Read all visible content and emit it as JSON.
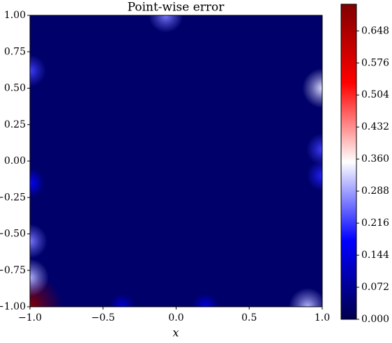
{
  "chart_data": {
    "type": "heatmap",
    "title": "Point-wise error",
    "x_label": "x",
    "xlim": [
      -1,
      1
    ],
    "ylim": [
      -1,
      1
    ],
    "xticks": [
      {
        "value": -1,
        "label": "−1.0"
      },
      {
        "value": -0.5,
        "label": "−0.5"
      },
      {
        "value": 0,
        "label": "0.0"
      },
      {
        "value": 0.5,
        "label": "0.5"
      },
      {
        "value": 1,
        "label": "1.0"
      }
    ],
    "yticks": [
      {
        "value": -1,
        "label": "−1.00"
      },
      {
        "value": -0.75,
        "label": "−0.75"
      },
      {
        "value": -0.5,
        "label": "−0.50"
      },
      {
        "value": -0.25,
        "label": "−0.25"
      },
      {
        "value": 0,
        "label": "0.00"
      },
      {
        "value": 0.25,
        "label": "0.25"
      },
      {
        "value": 0.5,
        "label": "0.50"
      },
      {
        "value": 0.75,
        "label": "0.75"
      },
      {
        "value": 1,
        "label": "1.00"
      }
    ],
    "clim": [
      0,
      0.708
    ],
    "cticks": [
      {
        "value": 0,
        "label": "0.000"
      },
      0.072,
      0.144,
      0.216,
      0.288,
      {
        "value": 0.36,
        "label": "0.360"
      },
      0.432,
      0.504,
      0.576,
      0.648
    ],
    "colormap": [
      "#00004c",
      "#0000ff",
      "#ffffff",
      "#ff0000",
      "#800000"
    ],
    "background": 0.03,
    "hotspots": [
      {
        "x": -1,
        "y": -1,
        "value": 0.7
      },
      {
        "x": -1,
        "y": -0.8,
        "value": 0.3
      },
      {
        "x": -1,
        "y": -0.55,
        "value": 0.26
      },
      {
        "x": -1,
        "y": -0.15,
        "value": 0.18
      },
      {
        "x": -1,
        "y": 0.62,
        "value": 0.22
      },
      {
        "x": -0.07,
        "y": 1,
        "value": 0.26
      },
      {
        "x": 1,
        "y": 0.5,
        "value": 0.33
      },
      {
        "x": 1,
        "y": 0.08,
        "value": 0.22
      },
      {
        "x": 1,
        "y": -0.1,
        "value": 0.2
      },
      {
        "x": 0.9,
        "y": -1,
        "value": 0.3
      },
      {
        "x": 0.2,
        "y": -1,
        "value": 0.15
      },
      {
        "x": -0.37,
        "y": -1,
        "value": 0.14
      }
    ]
  }
}
